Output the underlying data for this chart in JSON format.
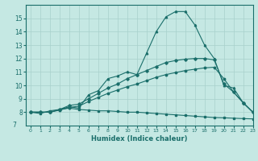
{
  "xlabel": "Humidex (Indice chaleur)",
  "xlim": [
    -0.5,
    23
  ],
  "ylim": [
    7,
    16
  ],
  "xticks": [
    0,
    1,
    2,
    3,
    4,
    5,
    6,
    7,
    8,
    9,
    10,
    11,
    12,
    13,
    14,
    15,
    16,
    17,
    18,
    19,
    20,
    21,
    22,
    23
  ],
  "yticks": [
    8,
    9,
    10,
    11,
    12,
    13,
    14,
    15
  ],
  "ytick_labels": [
    "8",
    "9",
    "10",
    "11",
    "12",
    "13",
    "14",
    "15"
  ],
  "background_color": "#c5e8e3",
  "grid_color": "#a8d0cb",
  "line_color": "#1a6e6a",
  "lines": [
    {
      "x": [
        0,
        1,
        2,
        3,
        4,
        5,
        6,
        7,
        8,
        9,
        10,
        11,
        12,
        13,
        14,
        15,
        16,
        17,
        18,
        19,
        20,
        21,
        22,
        23
      ],
      "y": [
        8.0,
        7.9,
        8.1,
        8.2,
        8.3,
        8.2,
        8.15,
        8.1,
        8.1,
        8.05,
        8.0,
        8.0,
        7.95,
        7.9,
        7.85,
        7.8,
        7.75,
        7.7,
        7.65,
        7.6,
        7.58,
        7.55,
        7.52,
        7.5
      ],
      "marker": "s",
      "markersize": 1.8,
      "linewidth": 0.8
    },
    {
      "x": [
        0,
        1,
        2,
        3,
        4,
        5,
        6,
        7,
        8,
        9,
        10,
        11,
        12,
        13,
        14,
        15,
        16,
        17,
        18,
        19,
        20,
        21,
        22,
        23
      ],
      "y": [
        8.0,
        8.0,
        8.0,
        8.15,
        8.35,
        8.45,
        8.8,
        9.1,
        9.4,
        9.65,
        9.9,
        10.1,
        10.35,
        10.6,
        10.8,
        10.95,
        11.1,
        11.2,
        11.3,
        11.35,
        10.5,
        9.5,
        8.7,
        8.0
      ],
      "marker": "o",
      "markersize": 1.8,
      "linewidth": 0.8
    },
    {
      "x": [
        0,
        1,
        2,
        3,
        4,
        5,
        6,
        7,
        8,
        9,
        10,
        11,
        12,
        13,
        14,
        15,
        16,
        17,
        18,
        19,
        20,
        21,
        22,
        23
      ],
      "y": [
        8.0,
        8.0,
        8.0,
        8.2,
        8.5,
        8.6,
        9.0,
        9.4,
        9.8,
        10.1,
        10.5,
        10.8,
        11.1,
        11.4,
        11.7,
        11.85,
        11.95,
        12.0,
        12.0,
        11.9,
        10.1,
        9.5,
        8.7,
        8.0
      ],
      "marker": "D",
      "markersize": 1.8,
      "linewidth": 0.8
    },
    {
      "x": [
        0,
        1,
        2,
        3,
        4,
        5,
        6,
        7,
        8,
        9,
        10,
        11,
        12,
        13,
        14,
        15,
        16,
        17,
        18,
        19,
        20,
        21,
        22,
        23
      ],
      "y": [
        8.0,
        8.0,
        8.0,
        8.2,
        8.4,
        8.3,
        9.3,
        9.6,
        10.5,
        10.7,
        11.0,
        10.8,
        12.4,
        14.0,
        15.1,
        15.5,
        15.5,
        14.5,
        13.0,
        12.0,
        10.0,
        9.8,
        8.7,
        8.0
      ],
      "marker": "^",
      "markersize": 1.8,
      "linewidth": 0.8
    }
  ]
}
